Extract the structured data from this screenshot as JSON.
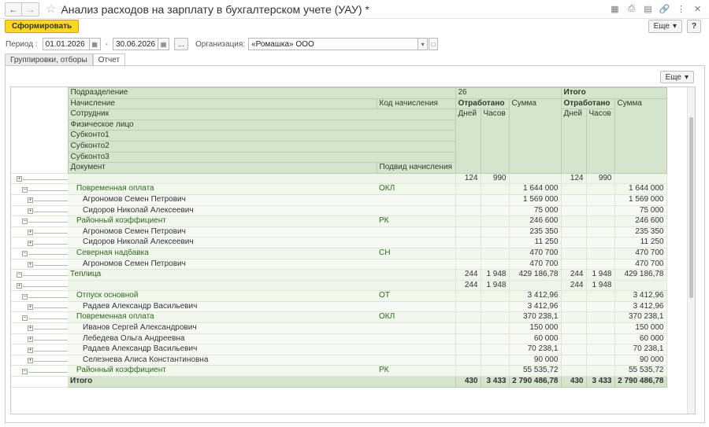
{
  "window": {
    "title": "Анализ расходов на зарплату в бухгалтерском учете (УАУ) *",
    "back_icon": "arrow-left-icon",
    "forward_icon": "arrow-right-icon"
  },
  "toolbar": {
    "generate_label": "Сформировать",
    "more_label": "Еще",
    "help_label": "?"
  },
  "params": {
    "period_label": "Период :",
    "date_from": "01.01.2026",
    "date_sep": "-",
    "date_to": "30.06.2026",
    "dots_label": "...",
    "org_label": "Организация:",
    "org_value": "«Ромашка» ООО"
  },
  "tabs": [
    "Группировки, отборы",
    "Отчет"
  ],
  "report_more_label": "Еще",
  "header": {
    "h_division": "Подразделение",
    "h_accrual": "Начисление",
    "h_accrual_code": "Код начисления",
    "h_employee": "Сотрудник",
    "h_person": "Физическое лицо",
    "h_sub1": "Субконто1",
    "h_sub2": "Субконто2",
    "h_sub3": "Субконто3",
    "h_document": "Документ",
    "h_subtype": "Подвид начисления",
    "h_group": "26",
    "h_total": "Итого",
    "h_worked": "Отработано",
    "h_sum": "Сумма",
    "h_days": "Дней",
    "h_hours": "Часов"
  },
  "rows": [
    {
      "level": 0,
      "label": "",
      "code": "",
      "d1": "124",
      "h1": "990",
      "s1": "",
      "d2": "124",
      "h2": "990",
      "s2": ""
    },
    {
      "level": 1,
      "label": "Повременная оплата",
      "code": "ОКЛ",
      "d1": "",
      "h1": "",
      "s1": "1 644 000",
      "d2": "",
      "h2": "",
      "s2": "1 644 000"
    },
    {
      "level": 2,
      "label": "Агрономов Семен Петрович",
      "code": "",
      "d1": "",
      "h1": "",
      "s1": "1 569 000",
      "d2": "",
      "h2": "",
      "s2": "1 569 000"
    },
    {
      "level": 2,
      "label": "Сидоров Николай Алексеевич",
      "code": "",
      "d1": "",
      "h1": "",
      "s1": "75 000",
      "d2": "",
      "h2": "",
      "s2": "75 000"
    },
    {
      "level": 1,
      "label": "Районный коэффициент",
      "code": "РК",
      "d1": "",
      "h1": "",
      "s1": "246 600",
      "d2": "",
      "h2": "",
      "s2": "246 600"
    },
    {
      "level": 2,
      "label": "Агрономов Семен Петрович",
      "code": "",
      "d1": "",
      "h1": "",
      "s1": "235 350",
      "d2": "",
      "h2": "",
      "s2": "235 350"
    },
    {
      "level": 2,
      "label": "Сидоров Николай Алексеевич",
      "code": "",
      "d1": "",
      "h1": "",
      "s1": "11 250",
      "d2": "",
      "h2": "",
      "s2": "11 250"
    },
    {
      "level": 1,
      "label": "Северная надбавка",
      "code": "СН",
      "d1": "",
      "h1": "",
      "s1": "470 700",
      "d2": "",
      "h2": "",
      "s2": "470 700"
    },
    {
      "level": 2,
      "label": "Агрономов Семен Петрович",
      "code": "",
      "d1": "",
      "h1": "",
      "s1": "470 700",
      "d2": "",
      "h2": "",
      "s2": "470 700"
    },
    {
      "level": 0,
      "label": "Теплица",
      "code": "",
      "d1": "244",
      "h1": "1 948",
      "s1": "429 186,78",
      "d2": "244",
      "h2": "1 948",
      "s2": "429 186,78"
    },
    {
      "level": 0,
      "label": "",
      "code": "",
      "d1": "244",
      "h1": "1 948",
      "s1": "",
      "d2": "244",
      "h2": "1 948",
      "s2": ""
    },
    {
      "level": 1,
      "label": "Отпуск основной",
      "code": "ОТ",
      "d1": "",
      "h1": "",
      "s1": "3 412,96",
      "d2": "",
      "h2": "",
      "s2": "3 412,96"
    },
    {
      "level": 2,
      "label": "Радаев Александр Васильевич",
      "code": "",
      "d1": "",
      "h1": "",
      "s1": "3 412,96",
      "d2": "",
      "h2": "",
      "s2": "3 412,96"
    },
    {
      "level": 1,
      "label": "Повременная оплата",
      "code": "ОКЛ",
      "d1": "",
      "h1": "",
      "s1": "370 238,1",
      "d2": "",
      "h2": "",
      "s2": "370 238,1"
    },
    {
      "level": 2,
      "label": "Иванов Сергей Александрович",
      "code": "",
      "d1": "",
      "h1": "",
      "s1": "150 000",
      "d2": "",
      "h2": "",
      "s2": "150 000"
    },
    {
      "level": 2,
      "label": "Лебедева Ольга Андреевна",
      "code": "",
      "d1": "",
      "h1": "",
      "s1": "60 000",
      "d2": "",
      "h2": "",
      "s2": "60 000"
    },
    {
      "level": 2,
      "label": "Радаев Александр Васильевич",
      "code": "",
      "d1": "",
      "h1": "",
      "s1": "70 238,1",
      "d2": "",
      "h2": "",
      "s2": "70 238,1"
    },
    {
      "level": 2,
      "label": "Селезнева Алиса Константиновна",
      "code": "",
      "d1": "",
      "h1": "",
      "s1": "90 000",
      "d2": "",
      "h2": "",
      "s2": "90 000"
    },
    {
      "level": 1,
      "label": "Районный коэффициент",
      "code": "РК",
      "d1": "",
      "h1": "",
      "s1": "55 535,72",
      "d2": "",
      "h2": "",
      "s2": "55 535,72"
    }
  ],
  "total": {
    "label": "Итого",
    "d1": "430",
    "h1": "3 433",
    "s1": "2 790 486,78",
    "d2": "430",
    "h2": "3 433",
    "s2": "2 790 486,78"
  },
  "colors": {
    "accent": "#ffd72a",
    "header_green": "#d5e4cc",
    "text_green": "#2d6a1c"
  }
}
